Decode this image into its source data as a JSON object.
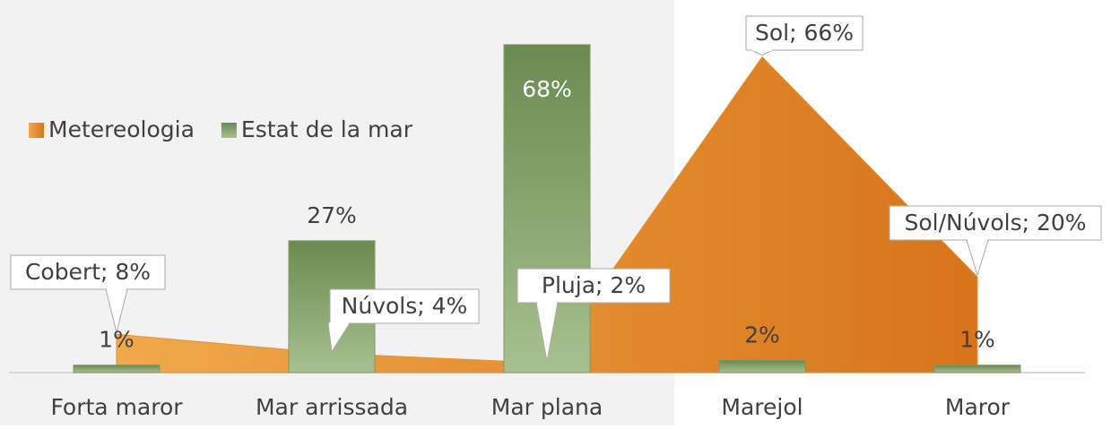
{
  "chart_data": {
    "type": "combo",
    "categories": [
      "Forta maror",
      "Mar arrissada",
      "Mar plana",
      "Marejol",
      "Maror"
    ],
    "series": [
      {
        "name": "Metereologia",
        "type": "area",
        "color": "#e8902a",
        "values": [
          8,
          4,
          2,
          66,
          20
        ],
        "value_labels": [
          "Cobert; 8%",
          "Núvols; 4%",
          "Pluja; 2%",
          "Sol; 66%",
          "Sol/Núvols; 20%"
        ]
      },
      {
        "name": "Estat de la mar",
        "type": "bar",
        "color": "#7d9b62",
        "values": [
          1,
          27,
          68,
          2,
          1
        ],
        "value_labels": [
          "1%",
          "27%",
          "68%",
          "2%",
          "1%"
        ]
      }
    ],
    "legend": "top-left"
  }
}
